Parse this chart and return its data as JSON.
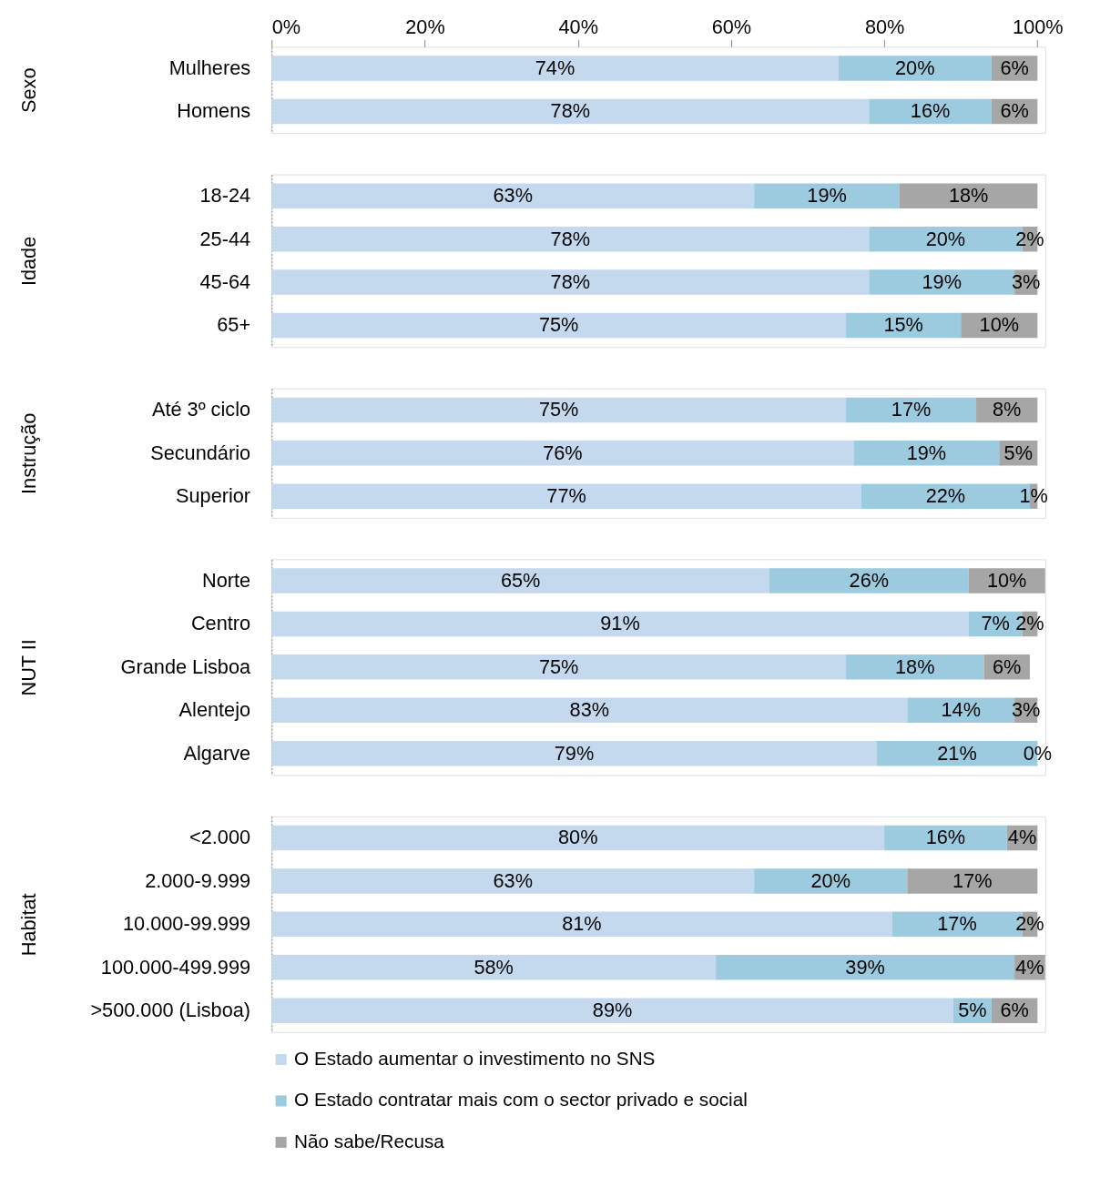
{
  "chart_data": [
    {
      "type": "bar",
      "orientation": "horizontal",
      "stacked": true,
      "ylabel": "Sexo",
      "categories": [
        "Mulheres",
        "Homens"
      ],
      "xlim": [
        0,
        101
      ],
      "xticks": [
        {
          "value": 0,
          "label": "0%"
        },
        {
          "value": 20,
          "label": "20%"
        },
        {
          "value": 40,
          "label": "40%"
        },
        {
          "value": 60,
          "label": "60%"
        },
        {
          "value": 80,
          "label": "80%"
        },
        {
          "value": 100,
          "label": "100%"
        }
      ],
      "grid": false,
      "legend": false,
      "series": [
        {
          "color": "#c5d9ee",
          "values": [
            74,
            78
          ],
          "value_labels": [
            "74%",
            "78%"
          ]
        },
        {
          "color": "#9ccbe0",
          "values": [
            20,
            16
          ],
          "value_labels": [
            "20%",
            "16%"
          ]
        },
        {
          "color": "#a6a6a6",
          "values": [
            6,
            6
          ],
          "value_labels": [
            "6%",
            "6%"
          ]
        }
      ]
    },
    {
      "type": "bar",
      "orientation": "horizontal",
      "stacked": true,
      "ylabel": "Idade",
      "categories": [
        "18-24",
        "25-44",
        "45-64",
        "65+"
      ],
      "xlim": [
        0,
        101
      ],
      "tick_labels": "y",
      "grid": false,
      "legend": false,
      "series": [
        {
          "color": "#c5d9ee",
          "values": [
            63,
            78,
            78,
            75
          ],
          "value_labels": [
            "63%",
            "78%",
            "78%",
            "75%"
          ]
        },
        {
          "color": "#9ccbe0",
          "values": [
            19,
            20,
            19,
            15
          ],
          "value_labels": [
            "19%",
            "20%",
            "19%",
            "15%"
          ]
        },
        {
          "color": "#a6a6a6",
          "values": [
            18,
            2,
            3,
            10
          ],
          "value_labels": [
            "18%",
            "2%",
            "3%",
            "10%"
          ]
        }
      ]
    },
    {
      "type": "bar",
      "orientation": "horizontal",
      "stacked": true,
      "ylabel": "Instrução",
      "categories": [
        "Até 3º ciclo",
        "Secundário",
        "Superior"
      ],
      "xlim": [
        0,
        101
      ],
      "tick_labels": "y",
      "grid": false,
      "legend": false,
      "series": [
        {
          "color": "#c5d9ee",
          "values": [
            75,
            76,
            77
          ],
          "value_labels": [
            "75%",
            "76%",
            "77%"
          ]
        },
        {
          "color": "#9ccbe0",
          "values": [
            17,
            19,
            22
          ],
          "value_labels": [
            "17%",
            "19%",
            "22%"
          ]
        },
        {
          "color": "#a6a6a6",
          "values": [
            8,
            5,
            1
          ],
          "value_labels": [
            "8%",
            "5%",
            "1%"
          ]
        }
      ]
    },
    {
      "type": "bar",
      "orientation": "horizontal",
      "stacked": true,
      "ylabel": "NUT II",
      "categories": [
        "Norte",
        "Centro",
        "Grande Lisboa",
        "Alentejo",
        "Algarve"
      ],
      "xlim": [
        0,
        101
      ],
      "tick_labels": "y",
      "grid": false,
      "legend": false,
      "series": [
        {
          "color": "#c5d9ee",
          "values": [
            65,
            91,
            75,
            83,
            79
          ],
          "value_labels": [
            "65%",
            "91%",
            "75%",
            "83%",
            "79%"
          ]
        },
        {
          "color": "#9ccbe0",
          "values": [
            26,
            7,
            18,
            14,
            21
          ],
          "value_labels": [
            "26%",
            "7%",
            "18%",
            "14%",
            "21%"
          ]
        },
        {
          "color": "#a6a6a6",
          "values": [
            10,
            2,
            6,
            3,
            0
          ],
          "value_labels": [
            "10%",
            "2%",
            "6%",
            "3%",
            "0%"
          ]
        }
      ]
    },
    {
      "type": "bar",
      "orientation": "horizontal",
      "stacked": true,
      "ylabel": "Habitat",
      "categories": [
        "<2.000",
        "2.000-9.999",
        "10.000-99.999",
        "100.000-499.999",
        ">500.000 (Lisboa)"
      ],
      "xlim": [
        0,
        101
      ],
      "tick_labels": "y",
      "grid": false,
      "legend": "bottom",
      "series": [
        {
          "name": "O Estado aumentar o investimento no SNS",
          "color": "#c5d9ee",
          "values": [
            80,
            63,
            81,
            58,
            89
          ],
          "value_labels": [
            "80%",
            "63%",
            "81%",
            "58%",
            "89%"
          ]
        },
        {
          "name": "O Estado contratar mais com o sector privado e social",
          "color": "#9ccbe0",
          "values": [
            16,
            20,
            17,
            39,
            5
          ],
          "value_labels": [
            "16%",
            "20%",
            "17%",
            "39%",
            "5%"
          ]
        },
        {
          "name": "Não sabe/Recusa",
          "color": "#a6a6a6",
          "values": [
            4,
            17,
            2,
            4,
            6
          ],
          "value_labels": [
            "4%",
            "17%",
            "2%",
            "4%",
            "6%"
          ]
        }
      ]
    }
  ]
}
